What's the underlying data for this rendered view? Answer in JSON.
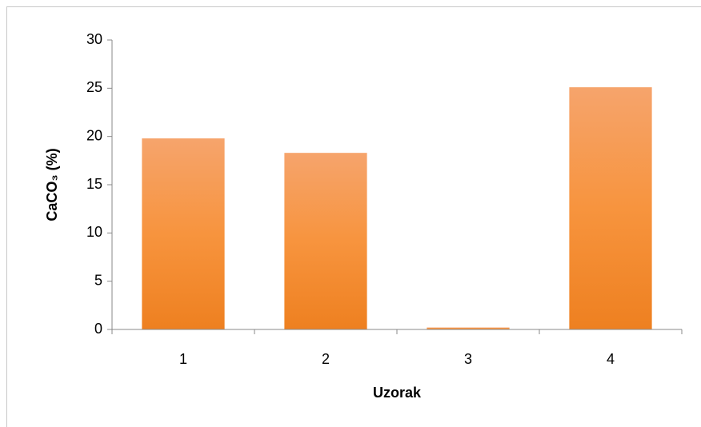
{
  "chart_data": {
    "type": "bar",
    "categories": [
      "1",
      "2",
      "3",
      "4"
    ],
    "values": [
      19.8,
      18.3,
      0.2,
      25.1
    ],
    "color": "#f79646",
    "xlabel": "Uzorak",
    "ylabel": "CaCO₃ (%)",
    "ylim": [
      0,
      30
    ],
    "yticks": [
      0,
      5,
      10,
      15,
      20,
      25,
      30
    ],
    "grid": false
  }
}
